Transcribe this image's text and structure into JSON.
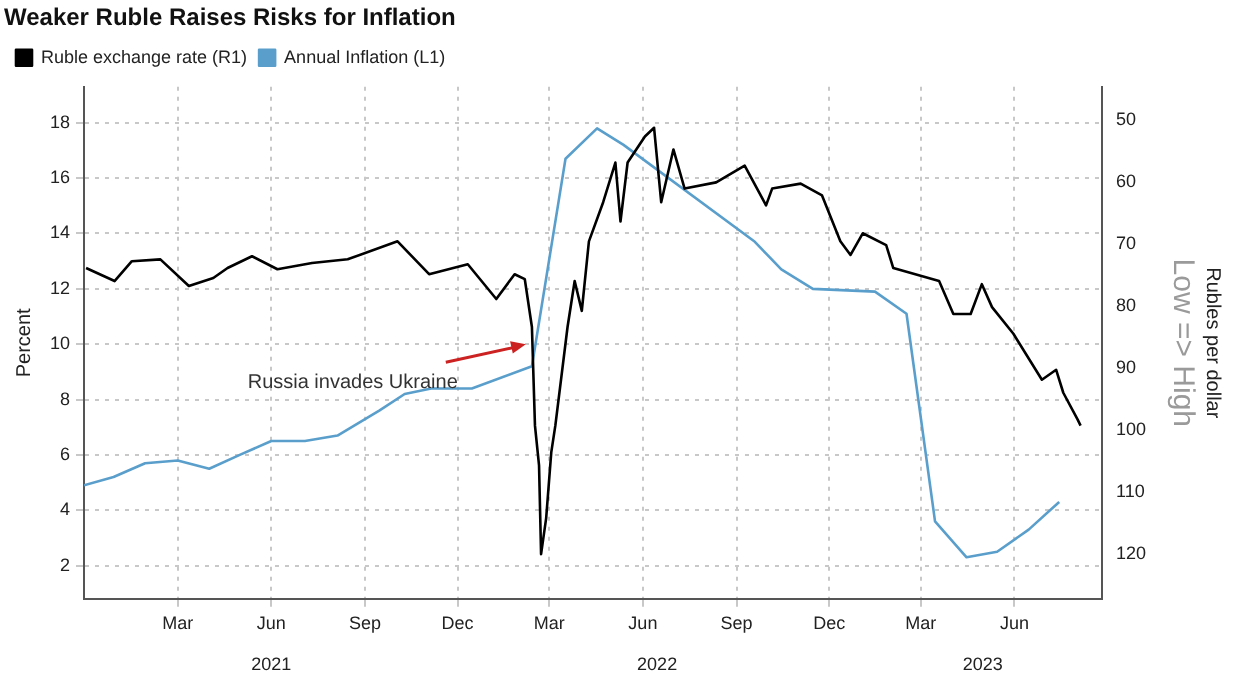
{
  "chart_data": {
    "type": "line",
    "title": "Weaker Ruble Raises Risks for Inflation",
    "ylabel": "Percent",
    "y2label": "Rubles per dollar",
    "xlim": [
      "2020-11-29",
      "2023-08-26"
    ],
    "xticks": [
      {
        "value": "2021-03-01",
        "label": "Mar"
      },
      {
        "value": "2021-06-01",
        "label": "Jun"
      },
      {
        "value": "2021-09-01",
        "label": "Sep"
      },
      {
        "value": "2021-12-01",
        "label": "Dec"
      },
      {
        "value": "2022-03-01",
        "label": "Mar"
      },
      {
        "value": "2022-06-01",
        "label": "Jun"
      },
      {
        "value": "2022-09-01",
        "label": "Sep"
      },
      {
        "value": "2022-12-01",
        "label": "Dec"
      },
      {
        "value": "2023-03-01",
        "label": "Mar"
      },
      {
        "value": "2023-06-01",
        "label": "Jun"
      }
    ],
    "x2lim": [
      "2020-11-29",
      "2023-08-26"
    ],
    "x2ticks": [
      {
        "value": "2021-06-01",
        "label": "2021"
      },
      {
        "value": "2022-06-15",
        "label": "2022"
      },
      {
        "value": "2023-05-01",
        "label": "2023"
      }
    ],
    "ylim": [
      0.8,
      19.3
    ],
    "yticks": [
      2,
      4,
      6,
      8,
      10,
      12,
      14,
      16,
      18
    ],
    "y2lim": [
      127.2,
      44.7
    ],
    "y2ticks": [
      50,
      60,
      70,
      80,
      90,
      100,
      110,
      120
    ],
    "grid": true,
    "legend": "top left",
    "marker": "none",
    "line_style": "solid",
    "series": [
      {
        "name": "Ruble exchange rate (R1)",
        "color": "#000000",
        "axis": "y2",
        "x": [
          "2020-12-01",
          "2020-12-29",
          "2021-01-15",
          "2021-02-12",
          "2021-03-12",
          "2021-04-05",
          "2021-04-19",
          "2021-05-13",
          "2021-06-07",
          "2021-07-11",
          "2021-08-15",
          "2021-10-03",
          "2021-11-03",
          "2021-12-11",
          "2022-01-08",
          "2022-01-26",
          "2022-02-05",
          "2022-02-12",
          "2022-02-15",
          "2022-02-19",
          "2022-02-21",
          "2022-02-26",
          "2022-03-03",
          "2022-03-07",
          "2022-03-19",
          "2022-03-26",
          "2022-04-02",
          "2022-04-09",
          "2022-04-23",
          "2022-05-05",
          "2022-05-10",
          "2022-05-17",
          "2022-06-03",
          "2022-06-12",
          "2022-06-19",
          "2022-07-01",
          "2022-07-12",
          "2022-08-12",
          "2022-09-09",
          "2022-09-30",
          "2022-10-06",
          "2022-11-03",
          "2022-11-24",
          "2022-12-12",
          "2022-12-22",
          "2023-01-03",
          "2023-01-26",
          "2023-02-02",
          "2023-03-19",
          "2023-04-02",
          "2023-04-19",
          "2023-04-30",
          "2023-05-10",
          "2023-05-31",
          "2023-06-28",
          "2023-07-12",
          "2023-07-19",
          "2023-08-02",
          "2023-08-05"
        ],
        "values": [
          73.9,
          76,
          72.8,
          72.5,
          76.8,
          75.5,
          73.9,
          72,
          74.1,
          73.1,
          72.5,
          69.6,
          74.9,
          73.3,
          78.9,
          74.9,
          75.7,
          83.4,
          99.3,
          105.7,
          120,
          114.2,
          103.6,
          99.3,
          83.4,
          76,
          80.8,
          69.6,
          63.3,
          56.9,
          66.4,
          56.9,
          52.7,
          51.3,
          63.3,
          54.8,
          61.1,
          60.1,
          57.4,
          63.8,
          61.1,
          60.3,
          62.2,
          69.6,
          71.8,
          68.3,
          70.2,
          73.9,
          76,
          81.3,
          81.3,
          76.5,
          80.2,
          84.5,
          91.9,
          90.3,
          94,
          98.3,
          99.3
        ]
      },
      {
        "name": "Annual Inflation (L1)",
        "color": "#5a9fcc",
        "x": [
          "2020-11-29",
          "2020-12-28",
          "2021-01-28",
          "2021-03-01",
          "2021-04-01",
          "2021-05-01",
          "2021-06-01",
          "2021-07-04",
          "2021-08-05",
          "2021-09-15",
          "2021-10-10",
          "2021-11-05",
          "2021-12-15",
          "2022-02-12",
          "2022-03-17",
          "2022-04-17",
          "2022-05-13",
          "2022-09-19",
          "2022-10-15",
          "2022-11-15",
          "2023-01-15",
          "2023-02-15",
          "2023-03-15",
          "2023-04-15",
          "2023-05-15",
          "2023-06-15",
          "2023-07-15"
        ],
        "values": [
          4.9,
          5.2,
          5.7,
          5.8,
          5.5,
          6.0,
          6.5,
          6.5,
          6.7,
          7.6,
          8.2,
          8.4,
          8.4,
          9.2,
          16.7,
          17.8,
          17.2,
          13.7,
          12.7,
          12.0,
          11.9,
          11.1,
          3.6,
          2.3,
          2.5,
          3.3,
          4.3
        ]
      }
    ],
    "annotations": [
      {
        "text": "Russia invades Ukraine",
        "x": "2022-02-06",
        "y": 10
      },
      "Low => High"
    ]
  }
}
